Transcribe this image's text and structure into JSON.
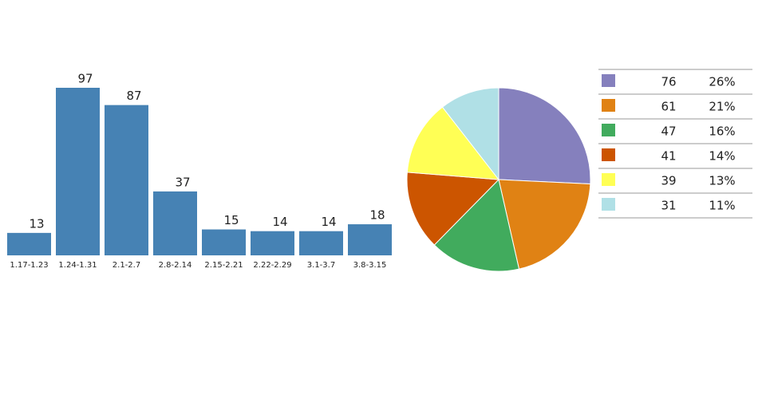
{
  "chart_data": [
    {
      "type": "bar",
      "categories": [
        "1.17-1.23",
        "1.24-1.31",
        "2.1-2.7",
        "2.8-2.14",
        "2.15-2.21",
        "2.22-2.29",
        "3.1-3.7",
        "3.8-3.15"
      ],
      "values": [
        13,
        97,
        87,
        37,
        15,
        14,
        14,
        18
      ],
      "color": "#4682b4"
    },
    {
      "type": "pie",
      "values": [
        76,
        61,
        47,
        41,
        39,
        31
      ],
      "percent_labels": [
        "26%",
        "21%",
        "16%",
        "14%",
        "13%",
        "11%"
      ],
      "colors": [
        "#8580bd",
        "#e08214",
        "#41ab5d",
        "#cc5500",
        "#ffff55",
        "#b0e0e6"
      ]
    }
  ]
}
